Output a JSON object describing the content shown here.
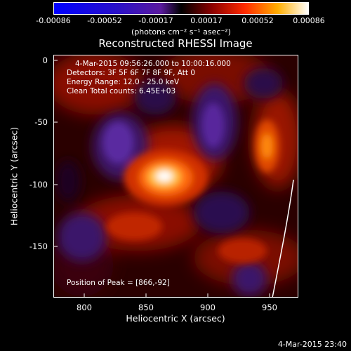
{
  "colorbar": {
    "ticks": [
      "-0.00086",
      "-0.00052",
      "-0.00017",
      "0.00017",
      "0.00052",
      "0.00086"
    ],
    "units": "(photons cm⁻² s⁻¹ asec⁻²)"
  },
  "title": "Reconstructed RHESSI Image",
  "overlay": {
    "time_range": "4-Mar-2015 09:56:26.000 to 10:00:16.000",
    "detectors": "Detectors: 3F 5F 6F 7F 8F 9F, Att 0",
    "energy": "Energy Range: 12.0 - 25.0 keV",
    "clean": "Clean     Total counts: 6.45E+03",
    "peak": "Position of Peak = [866,-92]"
  },
  "x_ticks": [
    "800",
    "850",
    "900",
    "950"
  ],
  "y_ticks": [
    "0",
    "-50",
    "-100",
    "-150"
  ],
  "xlabel": "Heliocentric X (arcsec)",
  "ylabel": "Heliocentric Y (arcsec)",
  "footer": "4-Mar-2015 23:40"
}
